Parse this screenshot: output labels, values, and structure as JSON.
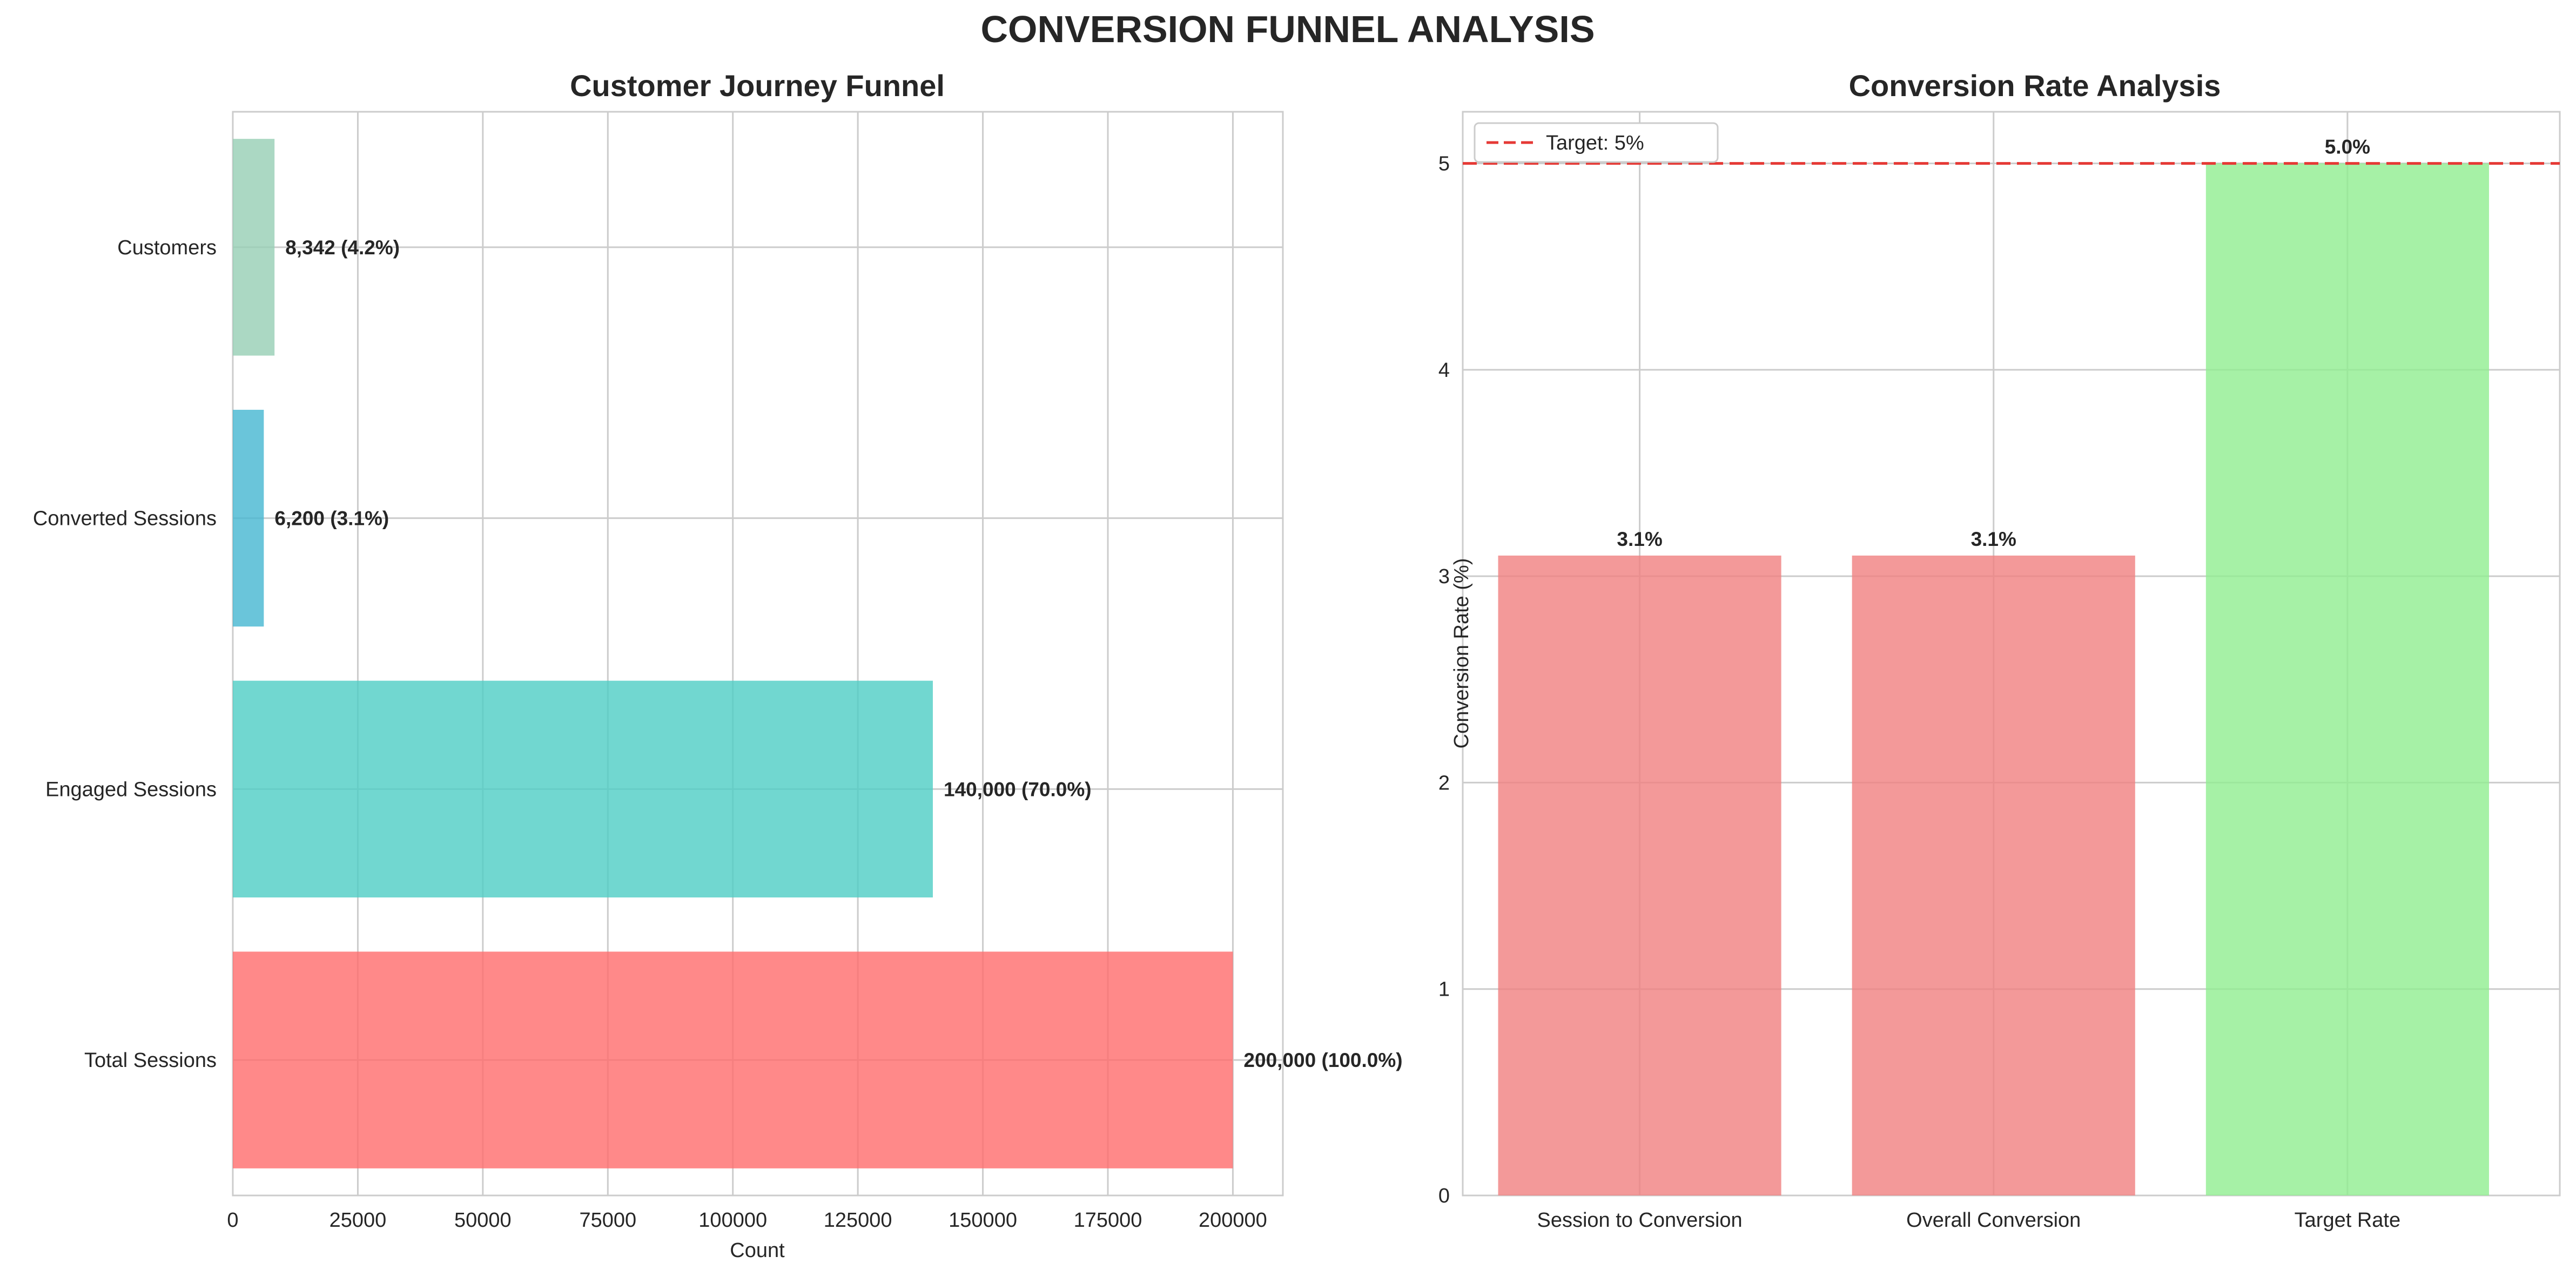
{
  "suptitle": "CONVERSION FUNNEL ANALYSIS",
  "chart_data": [
    {
      "type": "bar",
      "orientation": "horizontal",
      "title": "Customer Journey Funnel",
      "xlabel": "Count",
      "ylabel": "",
      "categories": [
        "Total Sessions",
        "Engaged Sessions",
        "Converted Sessions",
        "Customers"
      ],
      "values": [
        200000,
        140000,
        6200,
        8342
      ],
      "data_labels": [
        "200,000 (100.0%)",
        "140,000 (70.0%)",
        "6,200 (3.1%)",
        "8,342 (4.2%)"
      ],
      "colors": [
        "#ff6b6b",
        "#4ecdc4",
        "#45b7d1",
        "#96ceb4"
      ],
      "xlim": [
        0,
        210000
      ],
      "xticks": [
        0,
        25000,
        50000,
        75000,
        100000,
        125000,
        150000,
        175000,
        200000
      ],
      "grid": true
    },
    {
      "type": "bar",
      "title": "Conversion Rate Analysis",
      "xlabel": "",
      "ylabel": "Conversion Rate (%)",
      "categories": [
        "Session to Conversion",
        "Overall Conversion",
        "Target Rate"
      ],
      "values": [
        3.1,
        3.1,
        5.0
      ],
      "data_labels": [
        "3.1%",
        "3.1%",
        "5.0%"
      ],
      "colors": [
        "#f08080",
        "#f08080",
        "#90ee90"
      ],
      "ylim": [
        0,
        5.25
      ],
      "yticks": [
        0,
        1,
        2,
        3,
        4,
        5
      ],
      "reference_line": {
        "value": 5,
        "label": "Target: 5%",
        "color": "#e53935",
        "style": "dashed"
      },
      "legend_position": "top-left",
      "grid": true
    }
  ]
}
